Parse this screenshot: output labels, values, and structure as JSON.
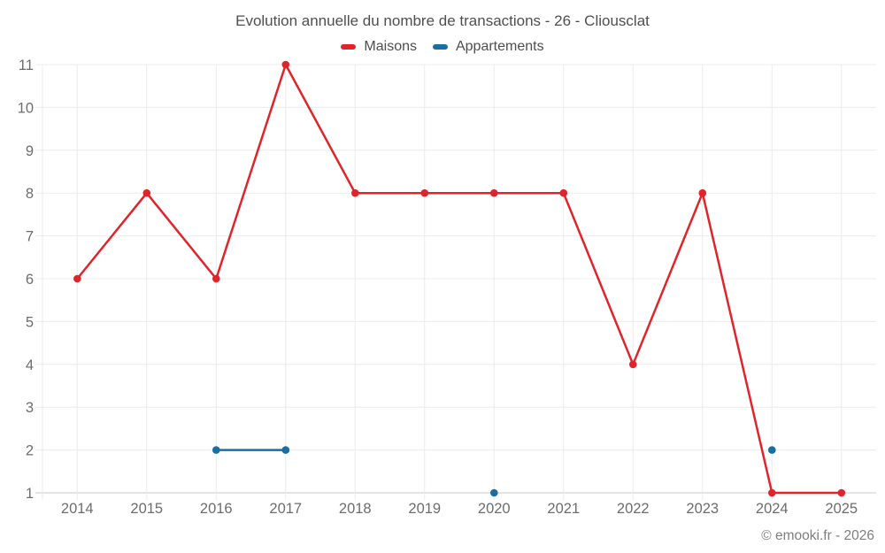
{
  "header": {
    "title": "Evolution annuelle du nombre de transactions - 26 - Cliousclat"
  },
  "legend": {
    "items": [
      {
        "label": "Maisons",
        "color": "#e02429"
      },
      {
        "label": "Appartements",
        "color": "#176fa4"
      }
    ]
  },
  "footer": {
    "copyright": "© emooki.fr - 2026"
  },
  "chart_data": {
    "type": "line",
    "title": "Evolution annuelle du nombre de transactions - 26 - Cliousclat",
    "x": [
      "2014",
      "2015",
      "2016",
      "2017",
      "2018",
      "2019",
      "2020",
      "2021",
      "2022",
      "2023",
      "2024",
      "2025"
    ],
    "series": [
      {
        "name": "Maisons",
        "color": "#e02429",
        "values": [
          6,
          8,
          6,
          11,
          8,
          8,
          8,
          8,
          4,
          8,
          1,
          1
        ]
      },
      {
        "name": "Appartements",
        "color": "#176fa4",
        "values": [
          null,
          null,
          2,
          2,
          null,
          null,
          1,
          null,
          null,
          null,
          2,
          null
        ]
      }
    ],
    "ylim": [
      1,
      11
    ],
    "yticks": [
      1,
      2,
      3,
      4,
      5,
      6,
      7,
      8,
      9,
      10,
      11
    ],
    "grid": true,
    "legend_position": "top",
    "colors": {
      "grid": "#ececec",
      "axis_line": "#c9c9c9",
      "tick_text": "#6d6d6d"
    }
  }
}
